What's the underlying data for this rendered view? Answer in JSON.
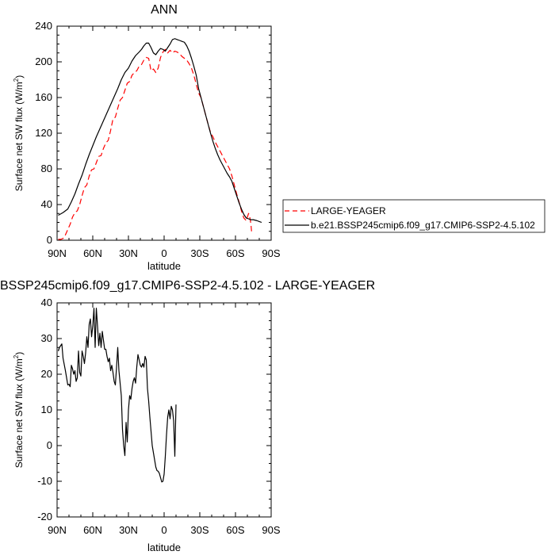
{
  "figure": {
    "top_title": "ANN",
    "bottom_title": "BSSP245cmip6.f09_g17.CMIP6-SSP2-4.5.102 - LARGE-YEAGER"
  },
  "chart_data": [
    {
      "type": "line",
      "title": "ANN",
      "xlabel": "latitude",
      "ylabel": "Surface net SW flux (W/m",
      "ylabel_sup": "2",
      "ylabel_close": ")",
      "x_tick_labels": [
        "90N",
        "60N",
        "30N",
        "0",
        "30S",
        "60S",
        "90S"
      ],
      "x_tick_values": [
        90,
        60,
        30,
        0,
        -30,
        -60,
        -90
      ],
      "xlim": [
        90,
        -90
      ],
      "ylim": [
        0,
        240
      ],
      "y_ticks": [
        0,
        40,
        80,
        120,
        160,
        200,
        240
      ],
      "y_tick_labels": [
        "0",
        "40",
        "80",
        "120",
        "160",
        "200",
        "240"
      ],
      "legend_position": "right",
      "series": [
        {
          "name": "LARGE-YEAGER",
          "color": "#ff0000",
          "dash": "dashed",
          "points": [
            [
              89,
              1
            ],
            [
              87,
              1
            ],
            [
              85,
              2
            ],
            [
              83,
              6
            ],
            [
              81,
              12
            ],
            [
              79,
              18
            ],
            [
              77,
              26
            ],
            [
              75,
              31
            ],
            [
              73,
              33
            ],
            [
              71,
              40
            ],
            [
              69,
              50
            ],
            [
              67,
              59
            ],
            [
              65,
              62
            ],
            [
              63,
              72
            ],
            [
              61,
              79
            ],
            [
              59,
              80
            ],
            [
              57,
              87
            ],
            [
              55,
              94
            ],
            [
              53,
              95
            ],
            [
              51,
              103
            ],
            [
              49,
              109
            ],
            [
              47,
              112
            ],
            [
              45,
              123
            ],
            [
              43,
              136
            ],
            [
              41,
              138
            ],
            [
              39,
              148
            ],
            [
              37,
              157
            ],
            [
              35,
              160
            ],
            [
              33,
              168
            ],
            [
              31,
              176
            ],
            [
              29,
              178
            ],
            [
              27,
              185
            ],
            [
              25,
              188
            ],
            [
              23,
              190
            ],
            [
              21,
              195
            ],
            [
              19,
              197
            ],
            [
              17,
              202
            ],
            [
              15,
              205
            ],
            [
              13,
              204
            ],
            [
              11,
              190
            ],
            [
              9,
              192
            ],
            [
              7,
              188
            ],
            [
              5,
              193
            ],
            [
              3,
              205
            ],
            [
              1,
              211
            ],
            [
              -1,
              214
            ],
            [
              -3,
              210
            ],
            [
              -5,
              213
            ],
            [
              -7,
              210
            ],
            [
              -9,
              212
            ],
            [
              -11,
              211
            ],
            [
              -13,
              209
            ],
            [
              -15,
              206
            ],
            [
              -17,
              204
            ],
            [
              -19,
              202
            ],
            [
              -21,
              198
            ],
            [
              -23,
              193
            ],
            [
              -25,
              185
            ],
            [
              -27,
              175
            ],
            [
              -29,
              165
            ],
            [
              -31,
              160
            ],
            [
              -33,
              150
            ],
            [
              -35,
              140
            ],
            [
              -37,
              130
            ],
            [
              -39,
              121
            ],
            [
              -41,
              116
            ],
            [
              -43,
              110
            ],
            [
              -45,
              105
            ],
            [
              -47,
              100
            ],
            [
              -49,
              95
            ],
            [
              -51,
              90
            ],
            [
              -53,
              85
            ],
            [
              -55,
              80
            ],
            [
              -57,
              72
            ],
            [
              -59,
              62
            ],
            [
              -61,
              52
            ],
            [
              -63,
              43
            ],
            [
              -65,
              33
            ],
            [
              -67,
              25
            ],
            [
              -69,
              22
            ],
            [
              -71,
              30
            ],
            [
              -72,
              26
            ],
            [
              -73,
              18
            ],
            [
              -73.5,
              10
            ]
          ]
        },
        {
          "name": "b.e21.BSSP245cmip6.f09_g17.CMIP6-SSP2-4.5.102",
          "color": "#000000",
          "dash": "solid",
          "points": [
            [
              89,
              28
            ],
            [
              85,
              31
            ],
            [
              81,
              35
            ],
            [
              78,
              43
            ],
            [
              75,
              52
            ],
            [
              72,
              63
            ],
            [
              69,
              73
            ],
            [
              66,
              85
            ],
            [
              63,
              96
            ],
            [
              60,
              106
            ],
            [
              57,
              116
            ],
            [
              54,
              125
            ],
            [
              51,
              134
            ],
            [
              48,
              143
            ],
            [
              45,
              152
            ],
            [
              42,
              161
            ],
            [
              39,
              170
            ],
            [
              36,
              180
            ],
            [
              33,
              188
            ],
            [
              30,
              193
            ],
            [
              27,
              201
            ],
            [
              24,
              207
            ],
            [
              21,
              211
            ],
            [
              19,
              214
            ],
            [
              17,
              218
            ],
            [
              15,
              221
            ],
            [
              13,
              221
            ],
            [
              11,
              216
            ],
            [
              9,
              210
            ],
            [
              7,
              208
            ],
            [
              5,
              212
            ],
            [
              3,
              215
            ],
            [
              1,
              214
            ],
            [
              -1,
              212
            ],
            [
              -3,
              216
            ],
            [
              -5,
              220
            ],
            [
              -7,
              225
            ],
            [
              -9,
              226
            ],
            [
              -11,
              225
            ],
            [
              -13,
              224
            ],
            [
              -15,
              223
            ],
            [
              -17,
              222
            ],
            [
              -19,
              218
            ],
            [
              -21,
              212
            ],
            [
              -23,
              204
            ],
            [
              -25,
              195
            ],
            [
              -27,
              185
            ],
            [
              -29,
              170
            ],
            [
              -31,
              160
            ],
            [
              -33,
              150
            ],
            [
              -35,
              140
            ],
            [
              -37,
              130
            ],
            [
              -39,
              120
            ],
            [
              -41,
              111
            ],
            [
              -43,
              103
            ],
            [
              -45,
              96
            ],
            [
              -47,
              90
            ],
            [
              -49,
              85
            ],
            [
              -51,
              80
            ],
            [
              -53,
              75
            ],
            [
              -55,
              71
            ],
            [
              -57,
              66
            ],
            [
              -59,
              58
            ],
            [
              -61,
              50
            ],
            [
              -63,
              42
            ],
            [
              -65,
              35
            ],
            [
              -67,
              29
            ],
            [
              -69,
              25
            ],
            [
              -71,
              24
            ],
            [
              -73,
              23
            ],
            [
              -75,
              23
            ],
            [
              -78,
              22
            ],
            [
              -80,
              21
            ],
            [
              -82,
              20
            ]
          ]
        }
      ]
    },
    {
      "type": "line",
      "title": "BSSP245cmip6.f09_g17.CMIP6-SSP2-4.5.102 - LARGE-YEAGER",
      "xlabel": "latitude",
      "ylabel": "Surface net SW flux (W/m",
      "ylabel_sup": "2",
      "ylabel_close": ")",
      "x_tick_labels": [
        "90N",
        "60N",
        "30N",
        "0",
        "30S",
        "60S",
        "90S"
      ],
      "x_tick_values": [
        90,
        60,
        30,
        0,
        -30,
        -60,
        -90
      ],
      "xlim": [
        90,
        -90
      ],
      "ylim": [
        -20,
        40
      ],
      "y_ticks": [
        -20,
        -10,
        0,
        10,
        20,
        30,
        40
      ],
      "y_tick_labels": [
        "-20",
        "-10",
        "0",
        "10",
        "20",
        "30",
        "40"
      ],
      "series": [
        {
          "color": "#000000",
          "dash": "solid",
          "points": [
            [
              89,
              26.5
            ],
            [
              88,
              27.5
            ],
            [
              86,
              28.5
            ],
            [
              85,
              24.5
            ],
            [
              83,
              21
            ],
            [
              81,
              17
            ],
            [
              80,
              17.2
            ],
            [
              79,
              16.5
            ],
            [
              78,
              22.5
            ],
            [
              77,
              21.5
            ],
            [
              76,
              20
            ],
            [
              75,
              21
            ],
            [
              74,
              18
            ],
            [
              73,
              19
            ],
            [
              72,
              26.5
            ],
            [
              71,
              20.5
            ],
            [
              70,
              19.5
            ],
            [
              69,
              26.5
            ],
            [
              68,
              25
            ],
            [
              67,
              23
            ],
            [
              66,
              26
            ],
            [
              65,
              30.5
            ],
            [
              64,
              27.5
            ],
            [
              63,
              34
            ],
            [
              62,
              35.5
            ],
            [
              61,
              30.5
            ],
            [
              60,
              33.5
            ],
            [
              59,
              38.5
            ],
            [
              58,
              27.5
            ],
            [
              57,
              38.5
            ],
            [
              56,
              33.5
            ],
            [
              55,
              28
            ],
            [
              54,
              31.5
            ],
            [
              53,
              27.5
            ],
            [
              52,
              32
            ],
            [
              51,
              29.5
            ],
            [
              50,
              27
            ],
            [
              49,
              27
            ],
            [
              48,
              25
            ],
            [
              47,
              23.5
            ],
            [
              46,
              24.5
            ],
            [
              45,
              21
            ],
            [
              44,
              22.5
            ],
            [
              43,
              20.5
            ],
            [
              42,
              18
            ],
            [
              41,
              17
            ],
            [
              40,
              22
            ],
            [
              39,
              27.5
            ],
            [
              38,
              21
            ],
            [
              37,
              17.5
            ],
            [
              36,
              14
            ],
            [
              35,
              4.5
            ],
            [
              34,
              0
            ],
            [
              33,
              -2.8
            ],
            [
              32,
              6.5
            ],
            [
              31,
              1
            ],
            [
              30,
              10
            ],
            [
              29,
              14
            ],
            [
              28,
              13
            ],
            [
              27,
              16
            ],
            [
              26,
              18
            ],
            [
              25,
              19
            ],
            [
              24,
              17.5
            ],
            [
              23,
              22
            ],
            [
              22,
              25.5
            ],
            [
              21,
              24
            ],
            [
              20,
              22.5
            ],
            [
              19,
              22
            ],
            [
              18,
              23
            ],
            [
              17,
              22
            ],
            [
              16,
              25
            ],
            [
              15,
              24
            ],
            [
              14,
              16
            ],
            [
              13,
              12.5
            ],
            [
              12,
              8
            ],
            [
              11,
              4
            ],
            [
              10,
              0
            ],
            [
              9,
              -2
            ],
            [
              8,
              -4
            ],
            [
              7,
              -6
            ],
            [
              6,
              -7
            ],
            [
              5,
              -7.2
            ],
            [
              4,
              -7.8
            ],
            [
              3,
              -9
            ],
            [
              2,
              -10.2
            ],
            [
              1,
              -10
            ],
            [
              0,
              -8
            ],
            [
              -1,
              -3
            ],
            [
              -2,
              3
            ],
            [
              -3,
              8
            ],
            [
              -4,
              10
            ],
            [
              -5,
              7.5
            ],
            [
              -6,
              11
            ],
            [
              -7,
              10
            ],
            [
              -8,
              7
            ],
            [
              -9,
              -3
            ],
            [
              -10,
              11.5
            ]
          ]
        }
      ]
    }
  ]
}
